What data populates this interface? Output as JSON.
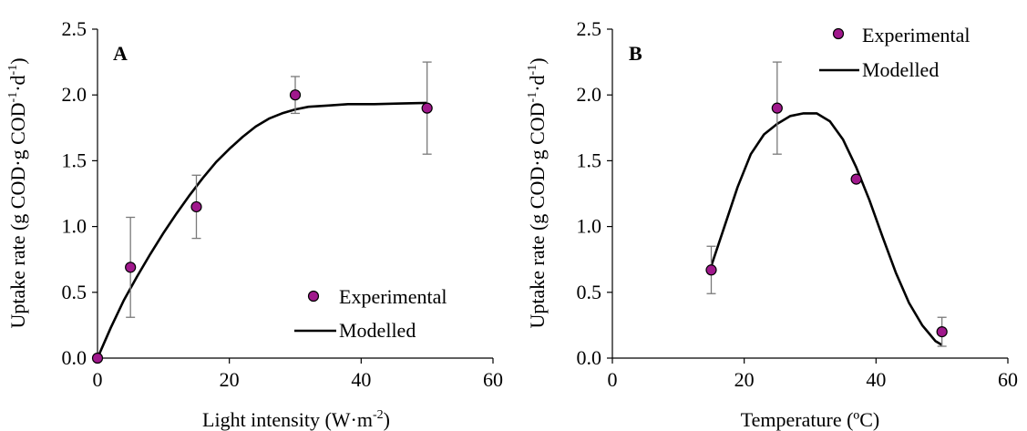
{
  "chart_data": [
    {
      "type": "scatter",
      "panel_label": "A",
      "xlabel": "Light intensity (W·m",
      "xlabel_sup": "-2",
      "xlabel_end": ")",
      "ylabel_parts": [
        "Uptake rate (g COD·g COD",
        "-1",
        "·d",
        "-1",
        ")"
      ],
      "xlim": [
        0,
        60
      ],
      "ylim": [
        0,
        2.5
      ],
      "xticks": [
        "0",
        "20",
        "40",
        "60"
      ],
      "yticks": [
        "0.0",
        "0.5",
        "1.0",
        "1.5",
        "2.0",
        "2.5"
      ],
      "legend_position": "bottom-right",
      "series": [
        {
          "name": "Experimental",
          "kind": "points",
          "color": "#a0188c",
          "points": [
            {
              "x": 0,
              "y": 0.0,
              "err": 0.0
            },
            {
              "x": 5,
              "y": 0.69,
              "err": 0.38
            },
            {
              "x": 15,
              "y": 1.15,
              "err": 0.24
            },
            {
              "x": 30,
              "y": 2.0,
              "err": 0.14
            },
            {
              "x": 50,
              "y": 1.9,
              "err": 0.35
            }
          ]
        },
        {
          "name": "Modelled",
          "kind": "line",
          "color": "#000000",
          "x": [
            0,
            2,
            4,
            6,
            8,
            10,
            12,
            14,
            16,
            18,
            20,
            22,
            24,
            26,
            28,
            30,
            32,
            35,
            38,
            42,
            46,
            50
          ],
          "y": [
            0.0,
            0.23,
            0.44,
            0.62,
            0.79,
            0.95,
            1.1,
            1.24,
            1.37,
            1.49,
            1.59,
            1.68,
            1.76,
            1.82,
            1.86,
            1.89,
            1.91,
            1.92,
            1.93,
            1.93,
            1.935,
            1.94
          ]
        }
      ]
    },
    {
      "type": "scatter",
      "panel_label": "B",
      "xlabel": "Temperature (ºC)",
      "xlabel_sup": "",
      "xlabel_end": "",
      "ylabel_parts": [
        "Uptake rate (g COD·g COD",
        "-1",
        "·d",
        "-1",
        ")"
      ],
      "xlim": [
        0,
        60
      ],
      "ylim": [
        0,
        2.5
      ],
      "xticks": [
        "0",
        "20",
        "40",
        "60"
      ],
      "yticks": [
        "0.0",
        "0.5",
        "1.0",
        "1.5",
        "2.0",
        "2.5"
      ],
      "legend_position": "top-right",
      "series": [
        {
          "name": "Experimental",
          "kind": "points",
          "color": "#a0188c",
          "points": [
            {
              "x": 15,
              "y": 0.67,
              "err": 0.18
            },
            {
              "x": 25,
              "y": 1.9,
              "err": 0.35
            },
            {
              "x": 37,
              "y": 1.36,
              "err": 0.0
            },
            {
              "x": 50,
              "y": 0.2,
              "err": 0.11
            }
          ]
        },
        {
          "name": "Modelled",
          "kind": "line",
          "color": "#000000",
          "x": [
            15,
            17,
            19,
            21,
            23,
            25,
            27,
            29,
            31,
            33,
            35,
            37,
            39,
            41,
            43,
            45,
            47,
            49,
            50
          ],
          "y": [
            0.7,
            1.0,
            1.3,
            1.55,
            1.7,
            1.78,
            1.84,
            1.86,
            1.86,
            1.8,
            1.66,
            1.45,
            1.2,
            0.92,
            0.65,
            0.42,
            0.25,
            0.13,
            0.1
          ]
        }
      ]
    }
  ]
}
